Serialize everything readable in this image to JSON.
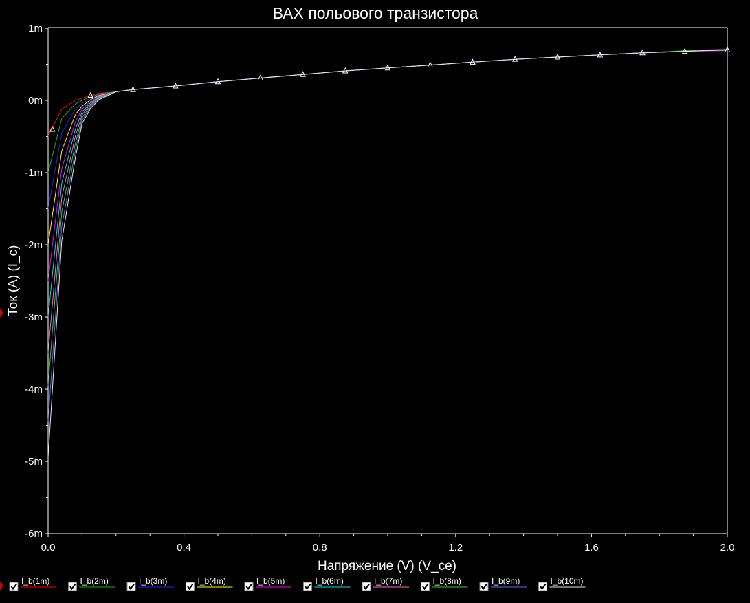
{
  "chart_data": {
    "type": "line",
    "title": "ВАХ польового транзистора",
    "xlabel": "Напряжение (V) (V_ce)",
    "ylabel": "Ток (А) (I_c)",
    "xlim": [
      0,
      2.0
    ],
    "ylim": [
      -6.1,
      1.0
    ],
    "x_ticks": [
      0.0,
      0.4,
      0.8,
      1.2,
      1.6,
      2.0
    ],
    "x_tick_labels": [
      "0.0",
      "0.4",
      "0.8",
      "1.2",
      "1.6",
      "2.0"
    ],
    "y_ticks": [
      1,
      0,
      -1,
      -2,
      -3,
      -4,
      -5,
      -6
    ],
    "y_tick_labels": [
      "1m",
      "0m",
      "-1m",
      "-2m",
      "-3m",
      "-4m",
      "-5m",
      "-6m"
    ],
    "y_unit": "mA",
    "grid": false,
    "legend_position": "bottom",
    "x": [
      0.0,
      0.04,
      0.08,
      0.1,
      0.125,
      0.15,
      0.2,
      0.25,
      0.375,
      0.5,
      0.625,
      0.75,
      0.875,
      1.0,
      1.125,
      1.25,
      1.375,
      1.5,
      1.625,
      1.75,
      1.875,
      2.0
    ],
    "series": [
      {
        "name": "I_b(1m)",
        "color": "#ff0000",
        "values": [
          -0.5,
          -0.12,
          0.0,
          0.03,
          0.07,
          0.1,
          0.12,
          0.15,
          0.2,
          0.26,
          0.31,
          0.36,
          0.41,
          0.45,
          0.49,
          0.53,
          0.57,
          0.6,
          0.63,
          0.66,
          0.68,
          0.7
        ]
      },
      {
        "name": "I_b(2m)",
        "color": "#00c000",
        "values": [
          -1.0,
          -0.25,
          -0.05,
          0.0,
          0.05,
          0.09,
          0.12,
          0.15,
          0.2,
          0.26,
          0.31,
          0.36,
          0.41,
          0.45,
          0.49,
          0.53,
          0.57,
          0.6,
          0.63,
          0.66,
          0.69,
          0.71
        ]
      },
      {
        "name": "I_b(3m)",
        "color": "#2020ff",
        "values": [
          -1.5,
          -0.45,
          -0.12,
          -0.04,
          0.03,
          0.08,
          0.12,
          0.15,
          0.2,
          0.26,
          0.31,
          0.36,
          0.41,
          0.45,
          0.49,
          0.53,
          0.57,
          0.6,
          0.63,
          0.66,
          0.68,
          0.7
        ]
      },
      {
        "name": "I_b(4m)",
        "color": "#ffff00",
        "values": [
          -2.0,
          -0.7,
          -0.2,
          -0.08,
          0.01,
          0.07,
          0.12,
          0.15,
          0.2,
          0.26,
          0.31,
          0.36,
          0.41,
          0.45,
          0.49,
          0.53,
          0.57,
          0.6,
          0.63,
          0.66,
          0.68,
          0.7
        ]
      },
      {
        "name": "I_b(5m)",
        "color": "#ff00ff",
        "values": [
          -2.5,
          -0.95,
          -0.3,
          -0.12,
          -0.01,
          0.06,
          0.12,
          0.15,
          0.2,
          0.26,
          0.31,
          0.36,
          0.41,
          0.45,
          0.49,
          0.53,
          0.57,
          0.6,
          0.63,
          0.66,
          0.68,
          0.69
        ]
      },
      {
        "name": "I_b(6m)",
        "color": "#00e0e0",
        "values": [
          -3.0,
          -1.15,
          -0.4,
          -0.16,
          -0.03,
          0.05,
          0.12,
          0.15,
          0.2,
          0.26,
          0.31,
          0.36,
          0.41,
          0.45,
          0.49,
          0.53,
          0.57,
          0.6,
          0.63,
          0.66,
          0.68,
          0.7
        ]
      },
      {
        "name": "I_b(7m)",
        "color": "#ff66cc",
        "values": [
          -3.5,
          -1.35,
          -0.5,
          -0.2,
          -0.05,
          0.04,
          0.12,
          0.15,
          0.2,
          0.26,
          0.31,
          0.36,
          0.41,
          0.45,
          0.49,
          0.53,
          0.57,
          0.6,
          0.63,
          0.66,
          0.68,
          0.7
        ]
      },
      {
        "name": "I_b(8m)",
        "color": "#33cc33",
        "values": [
          -3.95,
          -1.55,
          -0.6,
          -0.24,
          -0.07,
          0.03,
          0.12,
          0.15,
          0.2,
          0.26,
          0.31,
          0.36,
          0.41,
          0.45,
          0.49,
          0.53,
          0.57,
          0.6,
          0.63,
          0.66,
          0.68,
          0.7
        ]
      },
      {
        "name": "I_b(9m)",
        "color": "#6666ff",
        "values": [
          -4.45,
          -1.75,
          -0.7,
          -0.28,
          -0.09,
          0.02,
          0.12,
          0.15,
          0.2,
          0.26,
          0.31,
          0.36,
          0.41,
          0.45,
          0.49,
          0.53,
          0.57,
          0.6,
          0.63,
          0.66,
          0.68,
          0.7
        ]
      },
      {
        "name": "I_b(10m)",
        "color": "#e8e8e8",
        "values": [
          -4.95,
          -1.95,
          -0.8,
          -0.32,
          -0.11,
          0.01,
          0.12,
          0.15,
          0.2,
          0.26,
          0.31,
          0.36,
          0.41,
          0.45,
          0.49,
          0.53,
          0.57,
          0.6,
          0.63,
          0.66,
          0.68,
          0.7
        ]
      }
    ],
    "markers": {
      "color": "#ffffff",
      "x": [
        0.0125,
        0.125,
        0.25,
        0.375,
        0.5,
        0.625,
        0.75,
        0.875,
        1.0,
        1.125,
        1.25,
        1.375,
        1.5,
        1.625,
        1.75,
        1.875,
        2.0
      ],
      "y": [
        -0.4,
        0.07,
        0.15,
        0.2,
        0.26,
        0.31,
        0.36,
        0.41,
        0.45,
        0.49,
        0.53,
        0.57,
        0.6,
        0.63,
        0.66,
        0.68,
        0.7
      ]
    }
  }
}
